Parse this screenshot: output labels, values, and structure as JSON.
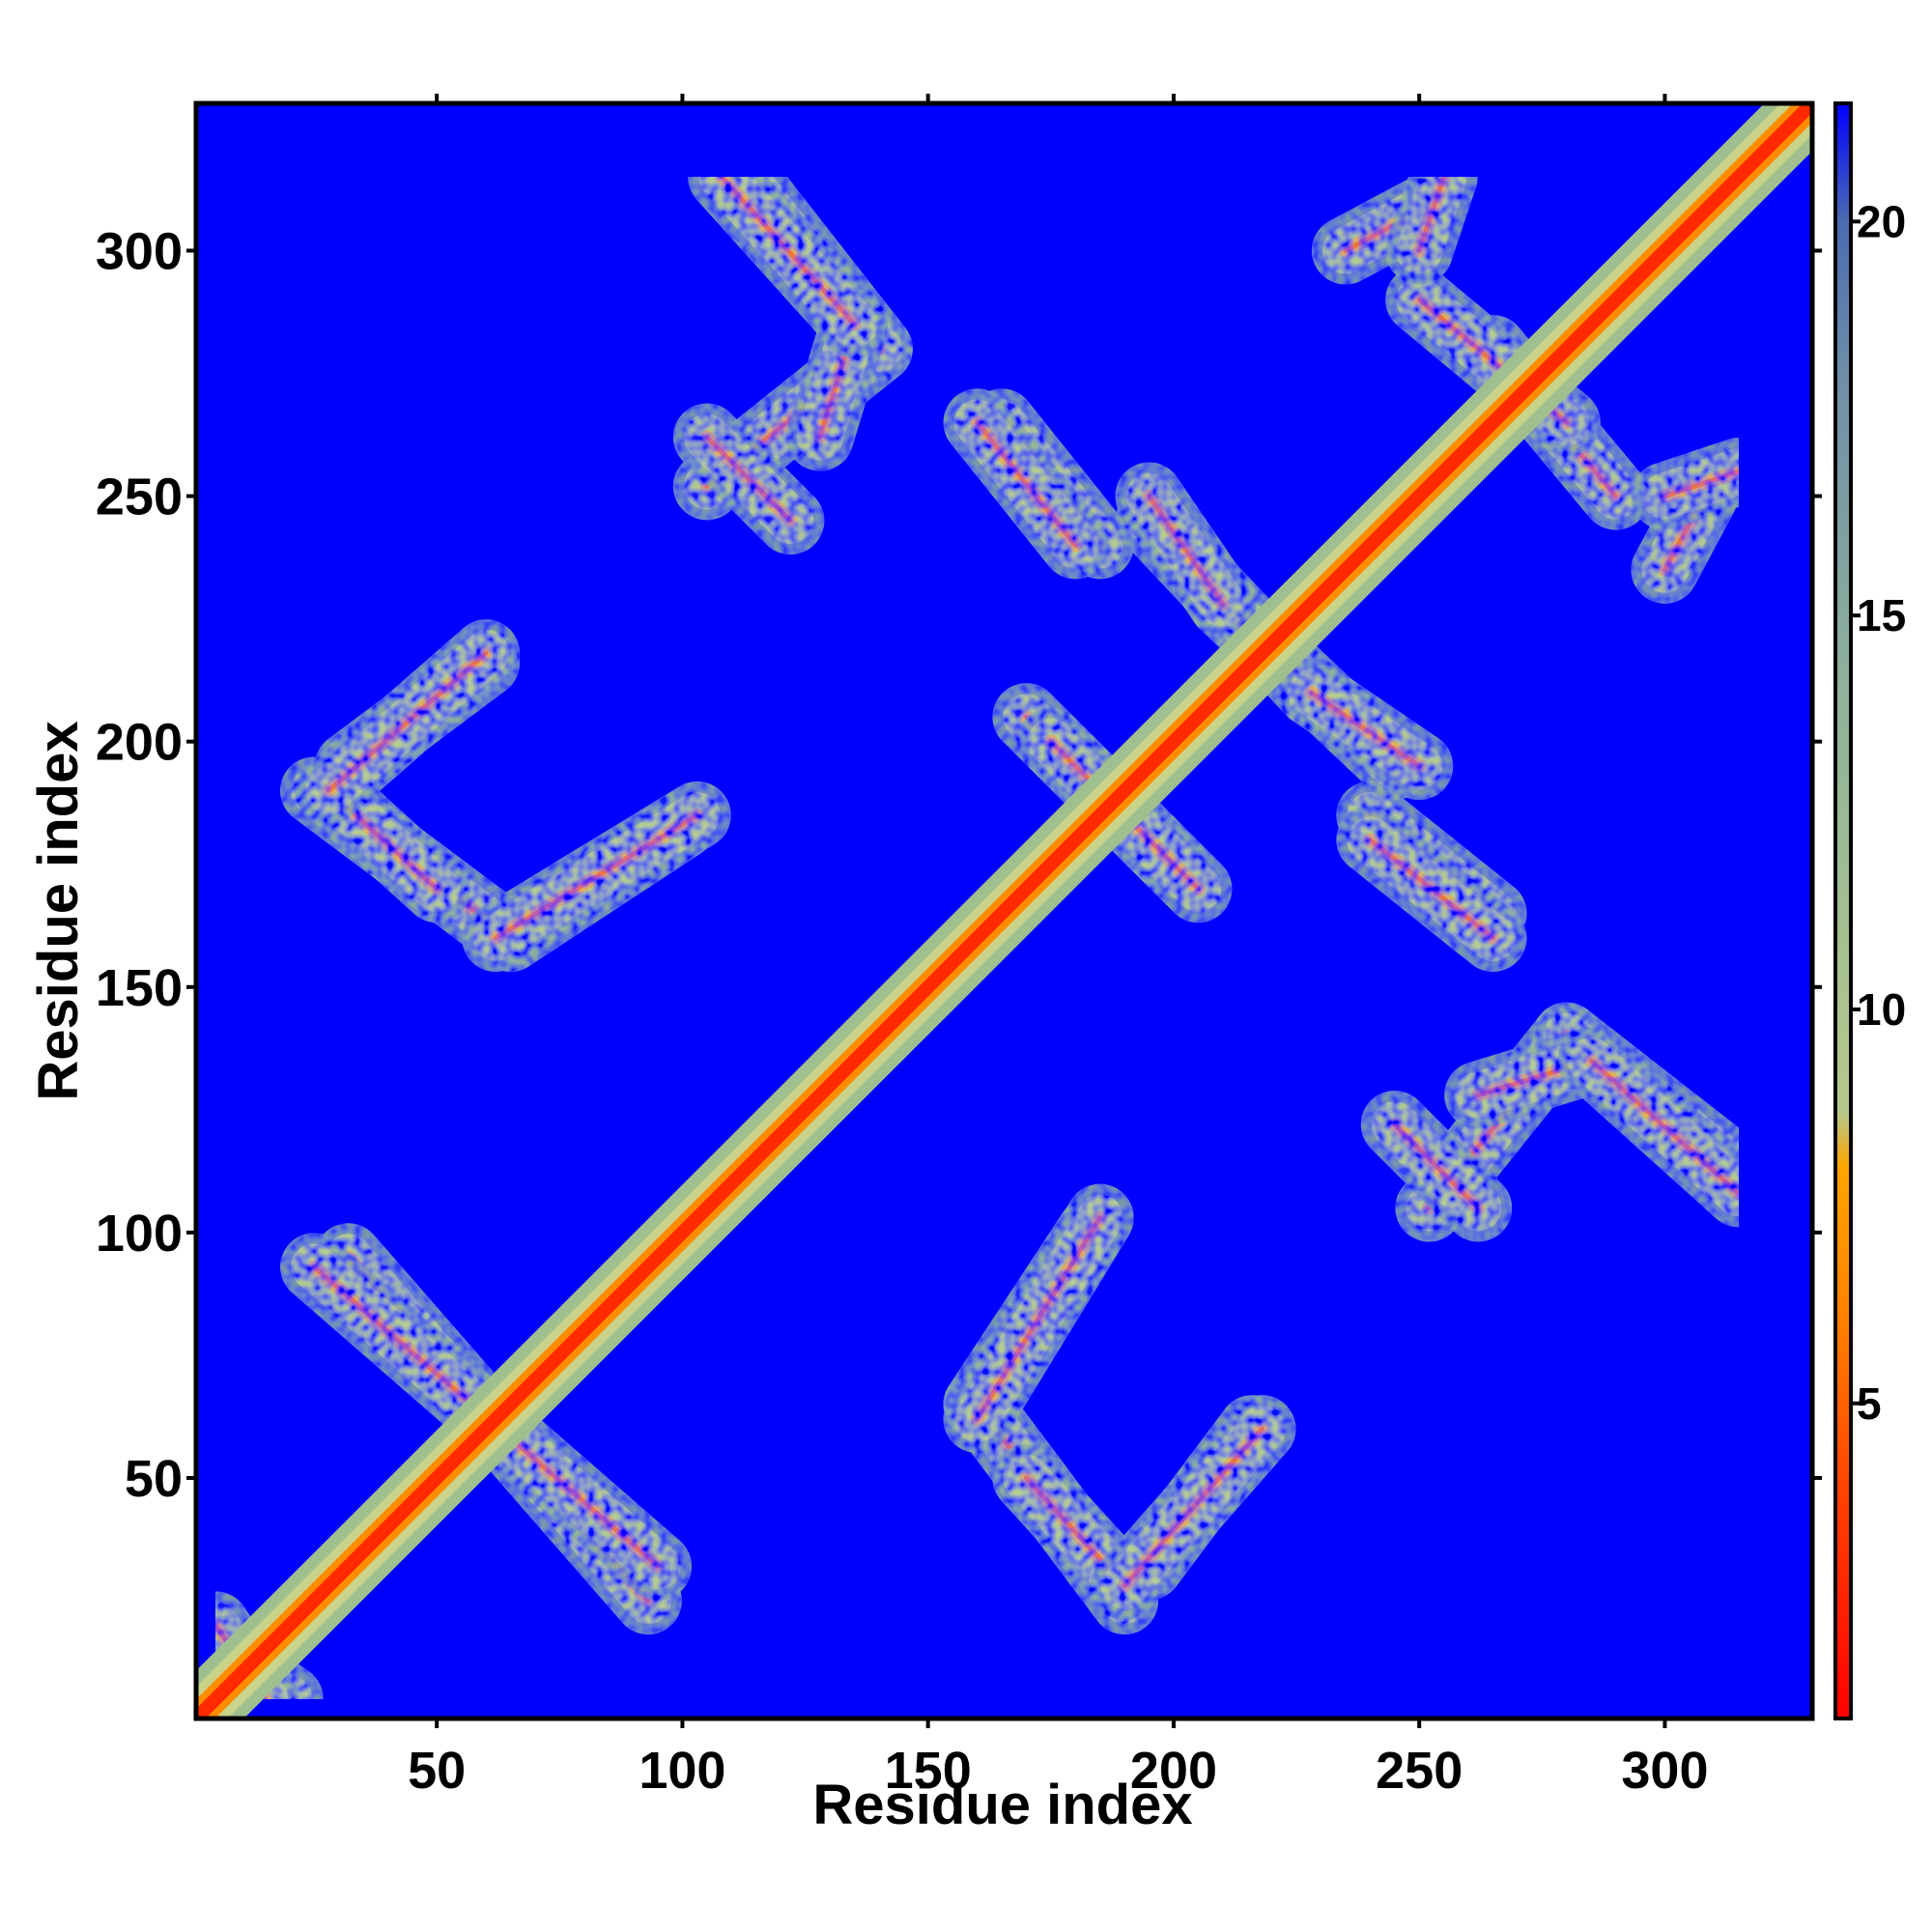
{
  "chart_data": {
    "type": "heatmap",
    "title": "",
    "xlabel": "Residue index",
    "ylabel": "Residue index",
    "xlim": [
      1,
      330
    ],
    "ylim": [
      1,
      330
    ],
    "x_ticks": [
      50,
      100,
      150,
      200,
      250,
      300
    ],
    "y_ticks": [
      50,
      100,
      150,
      200,
      250,
      300
    ],
    "colorbar": {
      "range": [
        1,
        21.5
      ],
      "ticks": [
        5,
        10,
        15,
        20
      ],
      "stops": [
        {
          "value": 1,
          "color": "#ff0000"
        },
        {
          "value": 4,
          "color": "#ff4500"
        },
        {
          "value": 6,
          "color": "#ff7f00"
        },
        {
          "value": 8,
          "color": "#ffa500"
        },
        {
          "value": 8.7,
          "color": "#b5c98a"
        },
        {
          "value": 14,
          "color": "#8fb39a"
        },
        {
          "value": 18,
          "color": "#6f8fa8"
        },
        {
          "value": 20,
          "color": "#4a6cb0"
        },
        {
          "value": 21.5,
          "color": "#0000ff"
        }
      ]
    },
    "background_color": "#0000ff",
    "diagonal": {
      "from": 1,
      "to": 330
    },
    "contact_bands": [
      {
        "x1": 32,
        "y1": 95,
        "x2": 93,
        "y2": 25
      },
      {
        "x1": 25,
        "y1": 190,
        "x2": 65,
        "y2": 160
      },
      {
        "x1": 65,
        "y1": 160,
        "x2": 100,
        "y2": 183
      },
      {
        "x1": 32,
        "y1": 195,
        "x2": 60,
        "y2": 216
      },
      {
        "x1": 105,
        "y1": 252,
        "x2": 140,
        "y2": 280
      },
      {
        "x1": 140,
        "y1": 280,
        "x2": 115,
        "y2": 312
      },
      {
        "x1": 160,
        "y1": 62,
        "x2": 185,
        "y2": 103
      },
      {
        "x1": 170,
        "y1": 50,
        "x2": 190,
        "y2": 28
      },
      {
        "x1": 190,
        "y1": 28,
        "x2": 218,
        "y2": 60
      },
      {
        "x1": 165,
        "y1": 265,
        "x2": 185,
        "y2": 240
      },
      {
        "x1": 195,
        "y1": 245,
        "x2": 228,
        "y2": 210
      },
      {
        "x1": 228,
        "y1": 210,
        "x2": 250,
        "y2": 195
      },
      {
        "x1": 170,
        "y1": 205,
        "x2": 200,
        "y2": 175
      },
      {
        "x1": 240,
        "y1": 180,
        "x2": 265,
        "y2": 160
      },
      {
        "x1": 235,
        "y1": 300,
        "x2": 250,
        "y2": 308
      },
      {
        "x1": 265,
        "y1": 280,
        "x2": 290,
        "y2": 250
      },
      {
        "x1": 300,
        "y1": 250,
        "x2": 315,
        "y2": 255
      },
      {
        "x1": 245,
        "y1": 122,
        "x2": 262,
        "y2": 105
      },
      {
        "x1": 262,
        "y1": 128,
        "x2": 285,
        "y2": 135
      },
      {
        "x1": 285,
        "y1": 135,
        "x2": 315,
        "y2": 108
      },
      {
        "x1": 5,
        "y1": 15,
        "x2": 20,
        "y2": 5
      }
    ]
  }
}
